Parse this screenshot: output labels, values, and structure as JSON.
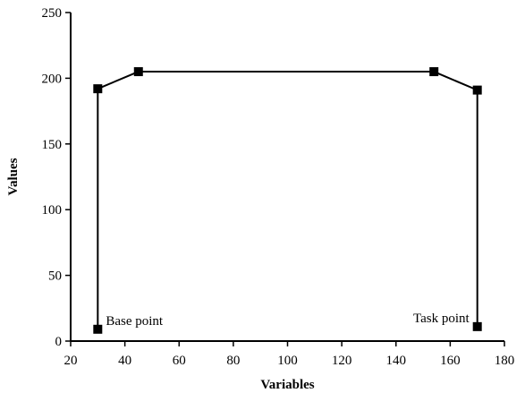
{
  "chart_data": {
    "type": "line",
    "xlabel": "Variables",
    "ylabel": "Values",
    "xlim": [
      20,
      180
    ],
    "ylim": [
      0,
      250
    ],
    "xticks": [
      20,
      40,
      60,
      80,
      100,
      120,
      140,
      160,
      180
    ],
    "yticks": [
      0,
      50,
      100,
      150,
      200,
      250
    ],
    "grid": false,
    "series": [
      {
        "x": [
          30,
          30,
          45,
          154,
          170,
          170
        ],
        "y": [
          9,
          192,
          205,
          205,
          191,
          11
        ],
        "marker": "square",
        "color": "#000000"
      }
    ],
    "annotations": [
      {
        "text": "Base point",
        "x": 30,
        "y": 9
      },
      {
        "text": "Task point",
        "x": 170,
        "y": 11
      }
    ]
  }
}
